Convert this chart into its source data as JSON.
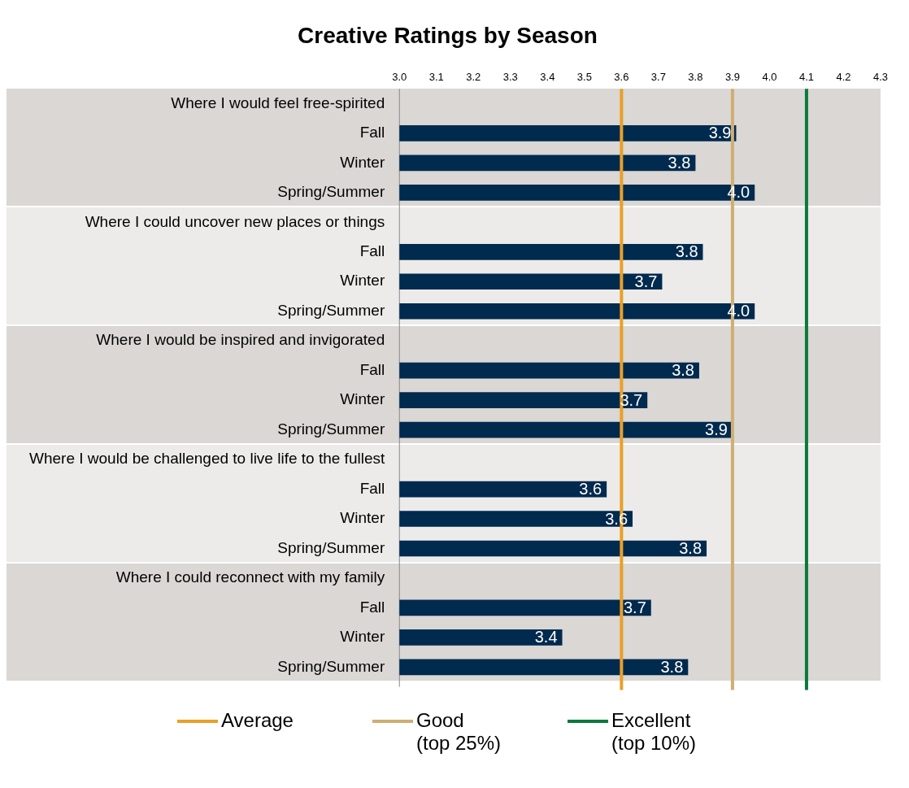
{
  "chart_data": {
    "type": "bar",
    "orientation": "horizontal",
    "title": "Creative Ratings by Season",
    "categories": [
      "Where I would feel free-spirited",
      "Fall",
      "Winter",
      "Spring/Summer",
      "Where I could uncover new places or things",
      "Fall",
      "Winter",
      "Spring/Summer",
      "Where I would be inspired and invigorated",
      "Fall",
      "Winter",
      "Spring/Summer",
      "Where I would be challenged to live life to the fullest",
      "Fall",
      "Winter",
      "Spring/Summer",
      "Where I could reconnect with my family",
      "Fall",
      "Winter",
      "Spring/Summer"
    ],
    "values": [
      null,
      3.91,
      3.8,
      3.96,
      null,
      3.82,
      3.71,
      3.96,
      null,
      3.81,
      3.67,
      3.9,
      null,
      3.56,
      3.63,
      3.83,
      null,
      3.68,
      3.44,
      3.78
    ],
    "value_labels": [
      null,
      "3.9",
      "3.8",
      "4.0",
      null,
      "3.8",
      "3.7",
      "4.0",
      null,
      "3.8",
      "3.7",
      "3.9",
      null,
      "3.6",
      "3.6",
      "3.8",
      null,
      "3.7",
      "3.4",
      "3.8"
    ],
    "color": "#002a4e",
    "xlim": [
      3.0,
      4.3
    ],
    "xticks": [
      {
        "value": 3.0,
        "label": "3.0"
      },
      3.1,
      3.2,
      3.3,
      3.4,
      3.5,
      3.6,
      3.7,
      3.8,
      3.9,
      {
        "value": 4.0,
        "label": "4.0"
      },
      4.1,
      4.2,
      4.3
    ],
    "grid": false,
    "legend": "bottom",
    "ref_lines": [
      {
        "axis": "x",
        "value": 3.6,
        "label": "Average",
        "color": "#e9a027"
      },
      {
        "axis": "x",
        "value": 3.9,
        "label": "Good\n(top 25%)",
        "color": "#cfae72"
      },
      {
        "axis": "x",
        "value": 4.1,
        "label": "Excellent\n(top 10%)",
        "color": "#0a7a3c"
      }
    ]
  }
}
